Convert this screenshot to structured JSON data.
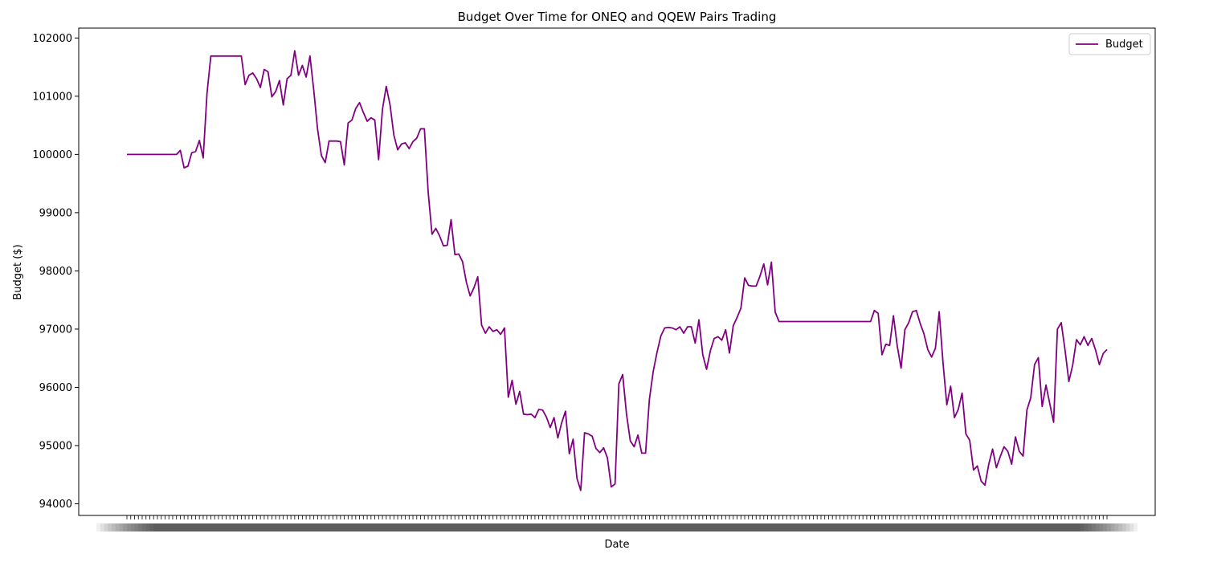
{
  "chart_data": {
    "type": "line",
    "title": "Budget Over Time for ONEQ and QQEW Pairs Trading",
    "xlabel": "Date",
    "ylabel": "Budget ($)",
    "ylim": [
      93800,
      102170
    ],
    "yticks": [
      94000,
      95000,
      96000,
      97000,
      98000,
      99000,
      100000,
      101000,
      102000
    ],
    "x_tick_labels_note": "",
    "legend_position": "top-right",
    "grid": false,
    "colors": {
      "line": "#800080",
      "axes": "#000000",
      "background": "#ffffff"
    },
    "series": [
      {
        "name": "Budget",
        "values": [
          100000,
          100000,
          100000,
          100000,
          100000,
          100000,
          100000,
          100000,
          100000,
          100000,
          100000,
          100000,
          100000,
          100000,
          100070,
          99770,
          99800,
          100030,
          100050,
          100240,
          99940,
          101050,
          101690,
          101690,
          101690,
          101690,
          101690,
          101690,
          101690,
          101690,
          101690,
          101200,
          101360,
          101400,
          101300,
          101150,
          101460,
          101420,
          100990,
          101080,
          101270,
          100850,
          101300,
          101360,
          101780,
          101360,
          101530,
          101330,
          101690,
          101100,
          100430,
          99980,
          99860,
          100230,
          100230,
          100230,
          100220,
          99820,
          100540,
          100590,
          100790,
          100890,
          100720,
          100570,
          100630,
          100590,
          99910,
          100770,
          101170,
          100850,
          100330,
          100080,
          100180,
          100200,
          100100,
          100220,
          100280,
          100440,
          100440,
          99350,
          98630,
          98730,
          98600,
          98430,
          98440,
          98880,
          98280,
          98290,
          98160,
          97810,
          97570,
          97710,
          97900,
          97070,
          96930,
          97040,
          96960,
          96990,
          96910,
          97020,
          95830,
          96120,
          95710,
          95930,
          95540,
          95530,
          95540,
          95480,
          95620,
          95610,
          95490,
          95310,
          95480,
          95130,
          95390,
          95590,
          94860,
          95110,
          94440,
          94230,
          95220,
          95200,
          95160,
          94950,
          94880,
          94960,
          94790,
          94290,
          94340,
          96060,
          96220,
          95540,
          95080,
          94980,
          95180,
          94870,
          94870,
          95790,
          96270,
          96600,
          96880,
          97020,
          97030,
          97020,
          96990,
          97040,
          96930,
          97040,
          97040,
          96760,
          97160,
          96560,
          96310,
          96630,
          96840,
          96870,
          96810,
          96990,
          96590,
          97060,
          97200,
          97360,
          97880,
          97750,
          97740,
          97740,
          97910,
          98120,
          97760,
          98150,
          97290,
          97130,
          97130,
          97130,
          97130,
          97130,
          97130,
          97130,
          97130,
          97130,
          97130,
          97130,
          97130,
          97130,
          97130,
          97130,
          97130,
          97130,
          97130,
          97130,
          97130,
          97130,
          97130,
          97130,
          97130,
          97130,
          97320,
          97270,
          96560,
          96740,
          96720,
          97230,
          96710,
          96330,
          96990,
          97110,
          97300,
          97320,
          97100,
          96920,
          96650,
          96520,
          96670,
          97300,
          96420,
          95700,
          96020,
          95480,
          95620,
          95900,
          95200,
          95090,
          94580,
          94650,
          94390,
          94320,
          94680,
          94940,
          94620,
          94810,
          94980,
          94900,
          94680,
          95150,
          94900,
          94820,
          95610,
          95820,
          96390,
          96510,
          95670,
          96040,
          95720,
          95400,
          97000,
          97110,
          96640,
          96100,
          96380,
          96820,
          96730,
          96870,
          96720,
          96840,
          96640,
          96390,
          96580,
          96650
        ]
      }
    ]
  }
}
